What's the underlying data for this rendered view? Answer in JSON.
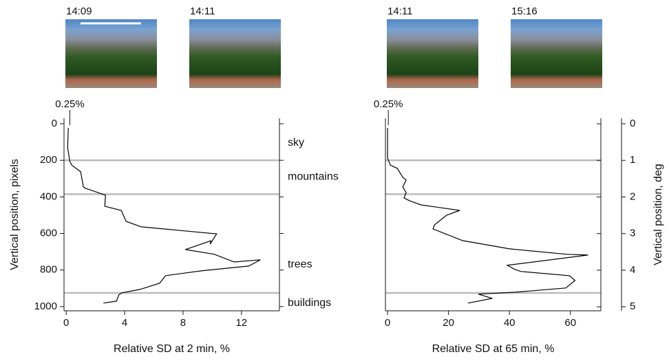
{
  "chart_data": [
    {
      "type": "line",
      "photos": [
        "14:09",
        "14:11"
      ],
      "xlabel": "Relative SD at 2 min, %",
      "ylabel": "Vertical position, pixels",
      "xlim": [
        -0.15,
        14.6
      ],
      "xticks": [
        0,
        4,
        8,
        12
      ],
      "ylim": [
        -30,
        1023
      ],
      "yticks": [
        0,
        200,
        400,
        600,
        800,
        1000
      ],
      "y_inverted": true,
      "boundaries": [
        200,
        385,
        925
      ],
      "boundary_color": "#bbbbbb",
      "reference": {
        "value": 0.25,
        "label": "0.25%"
      },
      "regions": [
        {
          "text": "sky",
          "y": 105
        },
        {
          "text": "mountains",
          "y": 290
        },
        {
          "text": "trees",
          "y": 770
        },
        {
          "text": "buildings",
          "y": 980
        }
      ],
      "series": [
        {
          "color": "#000000",
          "values": [
            0.14,
            0.1,
            0.24,
            0.38,
            0.99,
            1.18,
            1.32,
            2.69,
            2.64,
            3.77,
            4.1,
            5.14,
            10.3,
            9.86,
            9.9,
            8.16,
            10.14,
            11.5,
            13.3,
            12.5,
            9.2,
            6.8,
            6.4,
            5.05,
            3.8,
            3.6,
            3.44,
            2.55
          ]
        }
      ],
      "y": [
        23,
        132,
        203,
        226,
        263,
        346,
        353,
        391,
        451,
        474,
        534,
        564,
        602,
        658,
        640,
        688,
        714,
        756,
        744,
        778,
        805,
        831,
        872,
        906,
        925,
        936,
        970,
        981
      ]
    },
    {
      "type": "line",
      "photos": [
        "14:11",
        "15:16"
      ],
      "xlabel": "Relative SD at 65 min, %",
      "y2label": "Vertical position, deg",
      "xlim": [
        -0.7,
        70
      ],
      "xticks": [
        0,
        20,
        40,
        60
      ],
      "ylim": [
        -30,
        1023
      ],
      "y_inverted": true,
      "y2lim": [
        -0.15,
        5.11
      ],
      "y2ticks": [
        0,
        1,
        2,
        3,
        4,
        5
      ],
      "boundaries": [
        200,
        385,
        925
      ],
      "boundary_color": "#bbbbbb",
      "reference": {
        "value": 0.25,
        "label": "0.25%"
      },
      "series": [
        {
          "color": "#000000",
          "values": [
            0,
            0,
            0.9,
            3.2,
            5,
            6.1,
            5,
            6.1,
            5.4,
            7.2,
            11,
            23.7,
            19.4,
            15.4,
            14.9,
            24.6,
            40,
            58.8,
            65.8,
            39.3,
            41.8,
            43.8,
            59.7,
            61.5,
            58.5,
            42,
            29.8,
            34.4,
            26.4
          ]
        }
      ],
      "y": [
        23,
        188,
        226,
        244,
        293,
        308,
        346,
        376,
        406,
        421,
        444,
        474,
        500,
        553,
        575,
        639,
        684,
        714,
        718,
        774,
        797,
        808,
        831,
        857,
        898,
        921,
        932,
        955,
        981
      ]
    }
  ]
}
